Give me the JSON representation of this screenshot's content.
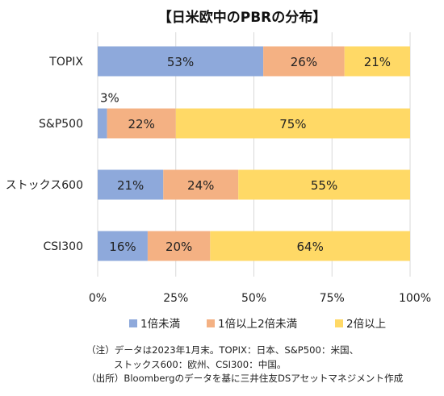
{
  "chart_data": {
    "type": "bar",
    "orientation": "horizontal",
    "stacked": true,
    "title": "【日米欧中のPBRの分布】",
    "categories": [
      "TOPIX",
      "S&P500",
      "ストックス600",
      "CSI300"
    ],
    "series": [
      {
        "name": "1倍未満",
        "values": [
          53,
          3,
          21,
          16
        ],
        "color": "#8EA9DB"
      },
      {
        "name": "1倍以上2倍未満",
        "values": [
          26,
          22,
          24,
          20
        ],
        "color": "#F4B183"
      },
      {
        "name": "2倍以上",
        "values": [
          21,
          75,
          55,
          64
        ],
        "color": "#FFD966"
      }
    ],
    "value_labels": [
      [
        "53%",
        "26%",
        "21%"
      ],
      [
        "3%",
        "22%",
        "75%"
      ],
      [
        "21%",
        "24%",
        "55%"
      ],
      [
        "16%",
        "20%",
        "64%"
      ]
    ],
    "xlim": [
      0,
      100
    ],
    "xticks": [
      "0%",
      "25%",
      "50%",
      "75%",
      "100%"
    ],
    "grid": "vertical",
    "legend_position": "bottom"
  },
  "notes": {
    "line1": "（注）データは2023年1月末。TOPIX：日本、S&P500：米国、",
    "line2": "ストックス600：欧州、CSI300：中国。",
    "line3": "（出所）Bloombergのデータを基に三井住友DSアセットマネジメント作成"
  }
}
